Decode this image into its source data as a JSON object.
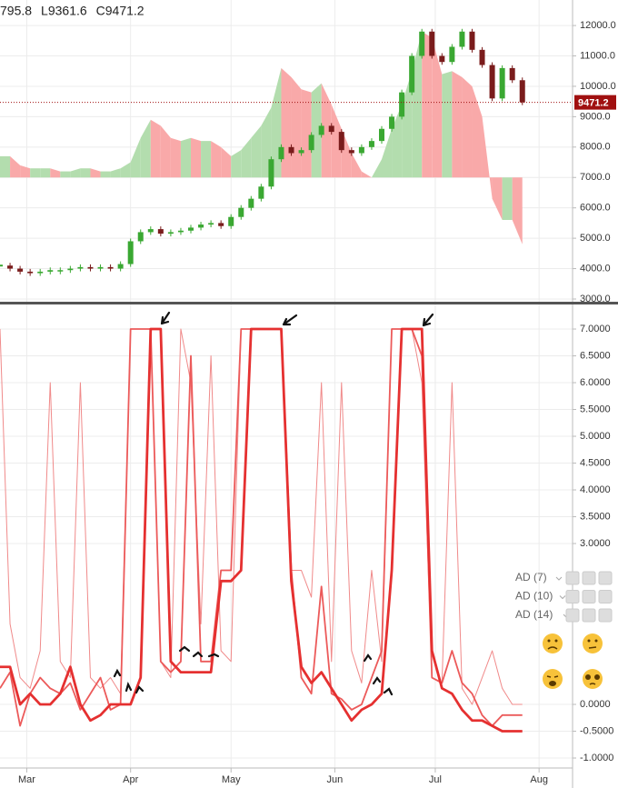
{
  "chart_data": [
    {
      "type": "candlestick",
      "header": [
        "795.8",
        "L9361.6",
        "C9471.2"
      ],
      "x": [
        0,
        3,
        6,
        9,
        12,
        15,
        18,
        21,
        24,
        27,
        30,
        33,
        36,
        39,
        42,
        45,
        48,
        51,
        54,
        57,
        60,
        63,
        66,
        69,
        72,
        75,
        78,
        81,
        84,
        87,
        90,
        93,
        96,
        99,
        102,
        105,
        108,
        111,
        114,
        117,
        120,
        123,
        126,
        129,
        132,
        135,
        138,
        141,
        144,
        147,
        150,
        153,
        156
      ],
      "close": [
        4100,
        4000,
        3900,
        3850,
        3900,
        3950,
        3950,
        4000,
        4050,
        4000,
        4050,
        4000,
        4150,
        4900,
        5200,
        5300,
        5150,
        5200,
        5250,
        5350,
        5450,
        5500,
        5400,
        5700,
        6000,
        6300,
        6700,
        7600,
        8000,
        7800,
        7900,
        8400,
        8700,
        8500,
        7900,
        7800,
        8000,
        8200,
        8600,
        9000,
        9800,
        11000,
        11800,
        11000,
        10800,
        11300,
        11800,
        11200,
        10700,
        9600,
        10600,
        10200,
        9471.2
      ],
      "up_color": "#3aa832",
      "down_color": "#7a1c1c",
      "last_price_color": "#a01010",
      "xlim": [
        0,
        171
      ],
      "ylim": [
        2880,
        12840
      ],
      "yticks": [
        {
          "value": 3000,
          "label": "3000.0"
        },
        {
          "value": 4000,
          "label": "4000.0"
        },
        {
          "value": 5000,
          "label": "5000.0"
        },
        {
          "value": 6000,
          "label": "6000.0"
        },
        {
          "value": 7000,
          "label": "7000.0"
        },
        {
          "value": 8000,
          "label": "8000.0"
        },
        {
          "value": 9000,
          "label": "9000.0"
        },
        {
          "value": 10000,
          "label": "10000.0"
        },
        {
          "value": 11000,
          "label": "11000.0"
        },
        {
          "value": 12000,
          "label": "12000.0"
        }
      ],
      "overlay": {
        "baseline": 7000,
        "up_color": "#b3ddae",
        "down_color": "#f9a9a9",
        "values": [
          7700,
          7700,
          7400,
          7300,
          7300,
          7300,
          7200,
          7200,
          7300,
          7300,
          7200,
          7200,
          7300,
          7500,
          8300,
          8900,
          8700,
          8300,
          8200,
          8300,
          8200,
          8200,
          8000,
          7700,
          7900,
          8300,
          8700,
          9300,
          10600,
          10300,
          9900,
          9800,
          10100,
          9400,
          8600,
          7800,
          7200,
          7000,
          7600,
          8600,
          9400,
          10500,
          11800,
          11600,
          10400,
          10500,
          10300,
          10000,
          9000,
          6300,
          5600,
          5600,
          4800
        ]
      }
    },
    {
      "type": "line",
      "x": [
        0,
        3,
        6,
        9,
        12,
        15,
        18,
        21,
        24,
        27,
        30,
        33,
        36,
        39,
        42,
        45,
        48,
        51,
        54,
        57,
        60,
        63,
        66,
        69,
        72,
        75,
        78,
        81,
        84,
        87,
        90,
        93,
        96,
        99,
        102,
        105,
        108,
        111,
        114,
        117,
        120,
        123,
        126,
        129,
        132,
        135,
        138,
        141,
        144,
        147,
        150,
        153,
        156
      ],
      "series": [
        {
          "name": "AD (7)",
          "color": "#f08a8a",
          "width": 1,
          "values": [
            7.0,
            1.5,
            0.5,
            0.3,
            1.0,
            6.0,
            0.8,
            0.5,
            6.0,
            0.5,
            0.3,
            0.5,
            0.2,
            7.0,
            7.0,
            7.0,
            0.8,
            0.5,
            7.0,
            6.0,
            1.5,
            6.5,
            1.0,
            0.8,
            7.0,
            7.0,
            7.0,
            7.0,
            7.0,
            2.5,
            2.5,
            2.0,
            6.0,
            0.8,
            6.0,
            1.0,
            0.4,
            2.5,
            0.8,
            7.0,
            7.0,
            7.0,
            6.0,
            0.5,
            0.4,
            6.0,
            0.3,
            0.0,
            0.5,
            1.0,
            0.3,
            0.0,
            0.0
          ]
        },
        {
          "name": "AD (10)",
          "color": "#ec5a5a",
          "width": 1.8,
          "values": [
            0.3,
            0.6,
            -0.4,
            0.2,
            0.5,
            0.3,
            0.2,
            0.4,
            -0.1,
            0.2,
            0.5,
            -0.1,
            0.0,
            7.0,
            7.0,
            7.0,
            0.8,
            0.6,
            0.8,
            6.5,
            0.8,
            0.8,
            2.5,
            2.5,
            7.0,
            7.0,
            7.0,
            7.0,
            7.0,
            2.5,
            0.5,
            0.2,
            2.2,
            0.2,
            0.1,
            -0.1,
            0.0,
            0.5,
            1.0,
            7.0,
            7.0,
            7.0,
            6.5,
            0.5,
            0.4,
            1.0,
            0.4,
            0.2,
            -0.2,
            -0.4,
            -0.2,
            -0.2,
            -0.2
          ]
        },
        {
          "name": "AD (14)",
          "color": "#e53030",
          "width": 2.8,
          "values": [
            0.7,
            0.7,
            0.0,
            0.2,
            0.0,
            0.0,
            0.2,
            0.7,
            0.0,
            -0.3,
            -0.2,
            0.0,
            0.0,
            0.0,
            0.5,
            7.0,
            7.0,
            0.8,
            0.6,
            0.6,
            0.6,
            0.6,
            2.3,
            2.3,
            2.5,
            7.0,
            7.0,
            7.0,
            7.0,
            2.3,
            0.7,
            0.4,
            0.6,
            0.3,
            0.0,
            -0.3,
            -0.1,
            0.0,
            0.2,
            2.5,
            7.0,
            7.0,
            7.0,
            1.0,
            0.3,
            0.2,
            -0.1,
            -0.3,
            -0.3,
            -0.4,
            -0.5,
            -0.5,
            -0.5
          ]
        }
      ],
      "xlim": [
        0,
        171
      ],
      "ylim": [
        -1.186,
        7.458
      ],
      "yticks": [
        {
          "value": -1,
          "label": "-1.0000"
        },
        {
          "value": -0.5,
          "label": "-0.5000"
        },
        {
          "value": 0,
          "label": "0.0000"
        },
        {
          "value": 3,
          "label": "3.0000"
        },
        {
          "value": 3.5,
          "label": "3.5000"
        },
        {
          "value": 4,
          "label": "4.0000"
        },
        {
          "value": 4.5,
          "label": "4.5000"
        },
        {
          "value": 5,
          "label": "5.0000"
        },
        {
          "value": 5.5,
          "label": "5.5000"
        },
        {
          "value": 6,
          "label": "6.0000"
        },
        {
          "value": 6.5,
          "label": "6.5000"
        },
        {
          "value": 7,
          "label": "7.0000"
        }
      ],
      "xticks": [
        {
          "value": 8,
          "label": "Mar"
        },
        {
          "value": 39,
          "label": "Apr"
        },
        {
          "value": 69,
          "label": "May"
        },
        {
          "value": 100,
          "label": "Jun"
        },
        {
          "value": 130,
          "label": "Jul"
        },
        {
          "value": 161,
          "label": "Aug"
        }
      ]
    }
  ]
}
